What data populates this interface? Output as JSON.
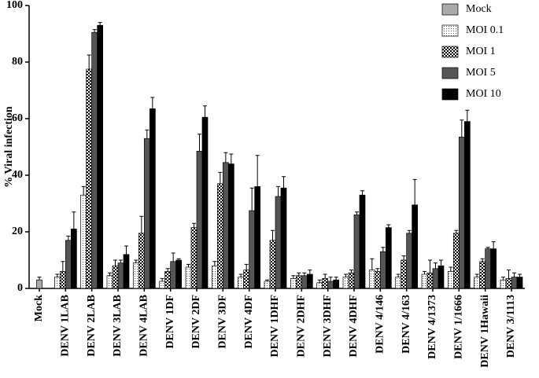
{
  "chart_data": {
    "type": "bar",
    "y_label": "% Viral infection",
    "categories": [
      "Mock",
      "DENV 1LAB",
      "DENV 2LAB",
      "DENV 3LAB",
      "DENV 4LAB",
      "DENV 1DF",
      "DENV 2DF",
      "DENV 3DF",
      "DENV 4DF",
      "DENV 1DHF",
      "DENV 2DHF",
      "DENV 3DHF",
      "DENV 4DHF",
      "DENV 4/146",
      "DENV 4/163",
      "DENV 4/1373",
      "DENV 1/1666",
      "DENV 1Hawaii",
      "DENV 3/1113"
    ],
    "series": [
      {
        "name": "Mock",
        "color": "#aaaaaa",
        "pattern": "solid",
        "values": [
          3,
          null,
          null,
          null,
          null,
          null,
          null,
          null,
          null,
          null,
          null,
          null,
          null,
          null,
          null,
          null,
          null,
          null,
          null
        ],
        "errors": [
          1,
          null,
          null,
          null,
          null,
          null,
          null,
          null,
          null,
          null,
          null,
          null,
          null,
          null,
          null,
          null,
          null,
          null,
          null
        ]
      },
      {
        "name": "MOI 0.1",
        "color": "#555555",
        "pattern": "dots",
        "values": [
          null,
          4,
          33,
          4.5,
          9,
          2.5,
          7.5,
          8,
          4,
          2.5,
          3.5,
          2,
          4,
          6.5,
          4,
          5,
          6,
          4,
          3
        ],
        "errors": [
          null,
          1,
          3,
          1,
          1,
          1,
          1,
          1.5,
          1,
          0.5,
          1,
          1,
          1,
          4,
          1,
          1,
          1.5,
          1,
          1
        ]
      },
      {
        "name": "MOI 1",
        "color": "#000000",
        "pattern": "checker",
        "values": [
          null,
          6,
          77.5,
          8,
          19.5,
          6,
          21.5,
          37,
          6.5,
          17,
          4.5,
          3.5,
          5.5,
          6,
          10,
          5.5,
          19.5,
          9.5,
          3.5
        ],
        "errors": [
          null,
          3.5,
          5,
          2,
          6,
          1,
          1.5,
          4,
          2,
          3.5,
          1,
          1.5,
          1,
          1,
          1.5,
          4.5,
          1,
          1,
          3
        ]
      },
      {
        "name": "MOI 5",
        "color": "#555555",
        "pattern": "solid",
        "values": [
          null,
          17,
          90.5,
          9,
          53,
          9.5,
          48.5,
          44.5,
          27.5,
          32.5,
          4.5,
          2.5,
          26,
          13,
          19.5,
          7,
          53.5,
          14,
          4
        ],
        "errors": [
          null,
          1.5,
          1,
          1,
          3,
          3,
          6,
          3.5,
          8,
          3.5,
          1,
          1.5,
          1,
          1.5,
          1,
          2,
          6,
          0.5,
          1.5
        ]
      },
      {
        "name": "MOI 10",
        "color": "#000000",
        "pattern": "solid",
        "values": [
          null,
          21,
          93,
          12,
          63.5,
          10,
          60.5,
          44,
          36,
          35.5,
          5,
          3,
          33,
          21.5,
          29.5,
          8,
          59,
          14,
          4
        ],
        "errors": [
          null,
          6,
          1,
          3,
          4,
          0.5,
          4,
          3.5,
          11,
          4,
          1.5,
          1,
          1.5,
          1,
          9,
          2,
          4,
          2.5,
          1
        ]
      }
    ],
    "ylim": [
      0,
      100
    ],
    "yticks": [
      0,
      20,
      40,
      60,
      80,
      100
    ],
    "legend": "top-right"
  }
}
